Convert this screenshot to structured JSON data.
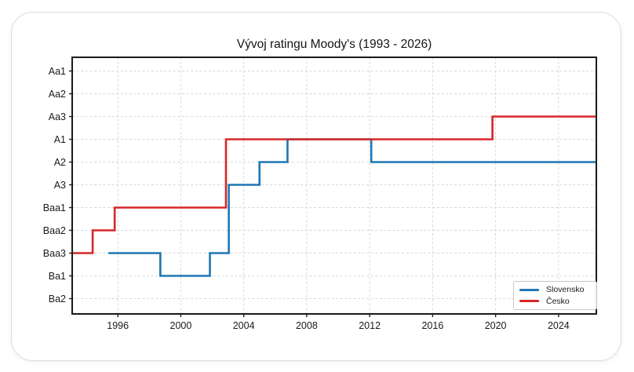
{
  "chart_data": {
    "type": "line",
    "subtype": "step-post",
    "title": "Vývoj ratingu Moody's (1993 - 2026)",
    "xlabel": "",
    "ylabel": "",
    "grid": true,
    "legend_position": "lower right",
    "x_ticks": [
      1996,
      2000,
      2004,
      2008,
      2012,
      2016,
      2020,
      2024
    ],
    "xlim": [
      1993.1,
      2026.4
    ],
    "x_end": 2026.4,
    "y_categories": [
      "Aa1",
      "Aa2",
      "Aa3",
      "A1",
      "A2",
      "A3",
      "Baa1",
      "Baa2",
      "Baa3",
      "Ba1",
      "Ba2"
    ],
    "series": [
      {
        "id": "slovensko",
        "name": "Slovensko",
        "color": "#1f77b4",
        "events": [
          {
            "year": 1995.4,
            "rating": "Baa3"
          },
          {
            "year": 1998.7,
            "rating": "Ba1"
          },
          {
            "year": 2001.85,
            "rating": "Baa3"
          },
          {
            "year": 2003.05,
            "rating": "A3"
          },
          {
            "year": 2005.0,
            "rating": "A2"
          },
          {
            "year": 2006.78,
            "rating": "A1"
          },
          {
            "year": 2012.1,
            "rating": "A2"
          }
        ]
      },
      {
        "id": "cesko",
        "name": "Česko",
        "color": "#d62728",
        "events": [
          {
            "year": 1993.1,
            "rating": "Baa3"
          },
          {
            "year": 1994.4,
            "rating": "Baa2"
          },
          {
            "year": 1995.8,
            "rating": "Baa1"
          },
          {
            "year": 2002.87,
            "rating": "A1"
          },
          {
            "year": 2019.8,
            "rating": "Aa3"
          }
        ]
      }
    ],
    "style": {
      "grid_color": "#d7d7d7",
      "frame_color": "#1a1a1a",
      "tick_label_color": "#1a1a1a",
      "background": "#ffffff"
    }
  }
}
